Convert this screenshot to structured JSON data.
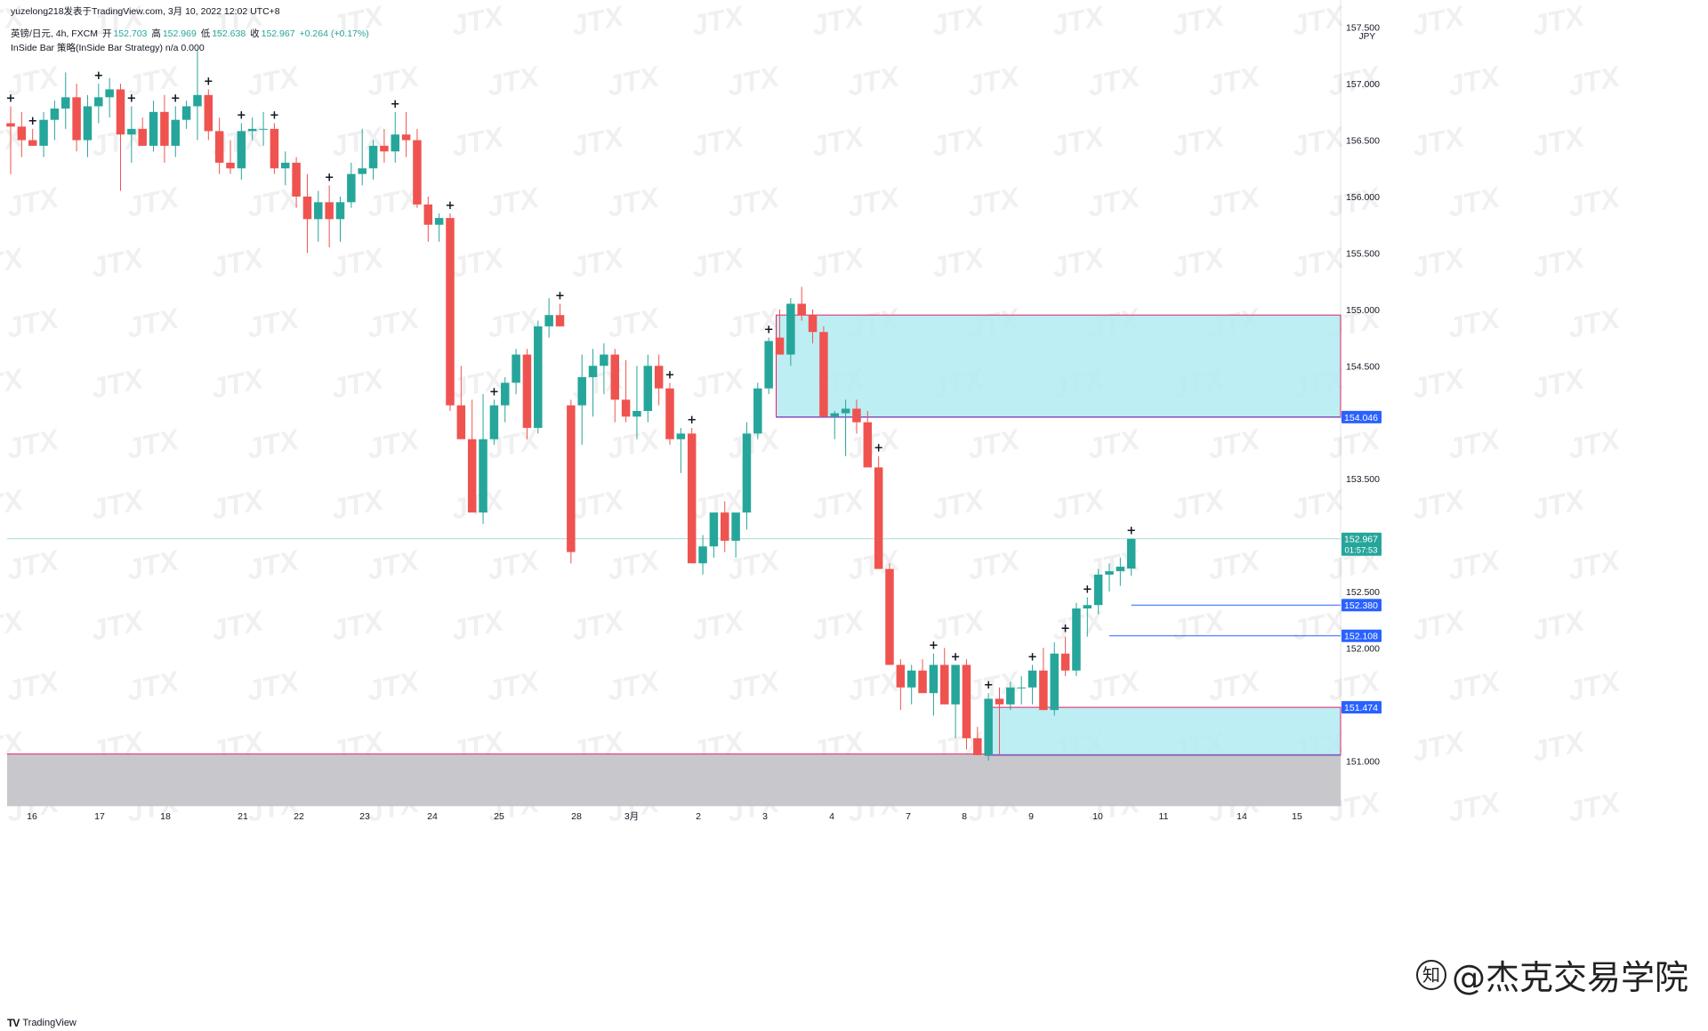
{
  "header": {
    "publisher": "yuzelong218发表于TradingView.com, 3月 10, 2022 12:02 UTC+8",
    "symbol": "英镑/日元, 4h, FXCM",
    "open_label": "开",
    "open": "152.703",
    "high_label": "高",
    "high": "152.969",
    "low_label": "低",
    "low": "152.638",
    "close_label": "收",
    "close": "152.967",
    "change": "+0.264 (+0.17%)",
    "indicator": "InSide Bar 策略(InSide Bar Strategy)  n/a  0.000"
  },
  "footer": {
    "logo": "TV",
    "brand": "TradingView"
  },
  "watermark": {
    "brand_text": "@杰克交易学院",
    "tile": "JTX"
  },
  "colors": {
    "up": "#26a69a",
    "down": "#ef5350",
    "zone_fill": "#b2ebf2",
    "zone_border": "#e91e63",
    "level_line": "#2962ff",
    "grey_zone": "#c8c8cc",
    "price_tag": "#2962ff",
    "last_price_tag": "#26a69a"
  },
  "chart_data": {
    "type": "candlestick",
    "title": "英镑/日元, 4h, FXCM",
    "currency": "JPY",
    "ylim": [
      150.6,
      157.6
    ],
    "y_ticks": [
      "157.500",
      "157.000",
      "156.500",
      "156.000",
      "155.500",
      "155.000",
      "154.500",
      "153.500",
      "152.500",
      "152.000",
      "151.000"
    ],
    "x_tick_labels": [
      "16",
      "17",
      "18",
      "21",
      "22",
      "23",
      "24",
      "25",
      "28",
      "3月",
      "2",
      "3",
      "4",
      "7",
      "8",
      "9",
      "10",
      "11",
      "14",
      "15"
    ],
    "candles_ohlc": [
      [
        156.65,
        156.8,
        156.2,
        156.62
      ],
      [
        156.62,
        156.75,
        156.35,
        156.5
      ],
      [
        156.5,
        156.6,
        156.45,
        156.45
      ],
      [
        156.45,
        156.75,
        156.35,
        156.68
      ],
      [
        156.68,
        156.85,
        156.5,
        156.78
      ],
      [
        156.78,
        157.1,
        156.6,
        156.88
      ],
      [
        156.88,
        157.0,
        156.4,
        156.5
      ],
      [
        156.5,
        156.9,
        156.35,
        156.8
      ],
      [
        156.8,
        157.0,
        156.65,
        156.88
      ],
      [
        156.88,
        157.05,
        156.7,
        156.95
      ],
      [
        156.95,
        157.0,
        156.05,
        156.55
      ],
      [
        156.55,
        156.8,
        156.3,
        156.6
      ],
      [
        156.6,
        156.7,
        156.45,
        156.45
      ],
      [
        156.45,
        156.85,
        156.4,
        156.75
      ],
      [
        156.75,
        156.9,
        156.3,
        156.45
      ],
      [
        156.45,
        156.8,
        156.35,
        156.68
      ],
      [
        156.68,
        156.85,
        156.6,
        156.8
      ],
      [
        156.8,
        157.3,
        156.5,
        156.9
      ],
      [
        156.9,
        156.95,
        156.5,
        156.58
      ],
      [
        156.58,
        156.7,
        156.2,
        156.3
      ],
      [
        156.3,
        156.5,
        156.2,
        156.25
      ],
      [
        156.25,
        156.65,
        156.15,
        156.58
      ],
      [
        156.58,
        156.7,
        156.5,
        156.6
      ],
      [
        156.6,
        156.75,
        156.45,
        156.6
      ],
      [
        156.6,
        156.65,
        156.2,
        156.25
      ],
      [
        156.25,
        156.4,
        156.1,
        156.3
      ],
      [
        156.3,
        156.35,
        155.9,
        156.0
      ],
      [
        156.0,
        156.2,
        155.5,
        155.8
      ],
      [
        155.8,
        156.05,
        155.6,
        155.95
      ],
      [
        155.95,
        156.1,
        155.55,
        155.8
      ],
      [
        155.8,
        156.0,
        155.6,
        155.95
      ],
      [
        155.95,
        156.3,
        155.9,
        156.2
      ],
      [
        156.2,
        156.6,
        156.1,
        156.25
      ],
      [
        156.25,
        156.5,
        156.15,
        156.45
      ],
      [
        156.45,
        156.6,
        156.3,
        156.4
      ],
      [
        156.4,
        156.75,
        156.3,
        156.55
      ],
      [
        156.55,
        156.75,
        156.35,
        156.5
      ],
      [
        156.5,
        156.6,
        155.9,
        155.93
      ],
      [
        155.93,
        156.0,
        155.6,
        155.75
      ],
      [
        155.75,
        155.85,
        155.6,
        155.81
      ],
      [
        155.81,
        155.85,
        154.1,
        154.15
      ],
      [
        154.15,
        154.5,
        153.9,
        153.85
      ],
      [
        153.85,
        154.2,
        153.3,
        153.2
      ],
      [
        153.2,
        154.25,
        153.1,
        153.85
      ],
      [
        153.85,
        154.2,
        153.8,
        154.15
      ],
      [
        154.15,
        154.4,
        154.0,
        154.35
      ],
      [
        154.35,
        154.65,
        154.25,
        154.6
      ],
      [
        154.6,
        154.65,
        153.85,
        153.95
      ],
      [
        153.95,
        154.9,
        153.9,
        154.85
      ],
      [
        154.85,
        155.1,
        154.75,
        154.95
      ],
      [
        154.95,
        155.05,
        154.85,
        154.85
      ],
      [
        154.15,
        154.2,
        152.75,
        152.85
      ],
      [
        154.15,
        154.6,
        153.8,
        154.4
      ],
      [
        154.4,
        154.65,
        154.05,
        154.5
      ],
      [
        154.5,
        154.7,
        154.25,
        154.6
      ],
      [
        154.6,
        154.65,
        154.0,
        154.2
      ],
      [
        154.2,
        154.55,
        154.0,
        154.05
      ],
      [
        154.05,
        154.5,
        153.85,
        154.1
      ],
      [
        154.1,
        154.6,
        154.0,
        154.5
      ],
      [
        154.5,
        154.6,
        154.15,
        154.3
      ],
      [
        154.3,
        154.35,
        153.8,
        153.85
      ],
      [
        153.85,
        153.95,
        153.55,
        153.9
      ],
      [
        153.9,
        153.95,
        152.8,
        152.75
      ],
      [
        152.75,
        153.0,
        152.65,
        152.9
      ],
      [
        152.9,
        153.2,
        152.8,
        153.2
      ],
      [
        153.2,
        153.3,
        152.85,
        152.95
      ],
      [
        152.95,
        153.1,
        152.8,
        153.2
      ],
      [
        153.2,
        154.0,
        153.05,
        153.9
      ],
      [
        153.9,
        154.35,
        153.85,
        154.3
      ],
      [
        154.3,
        154.75,
        154.25,
        154.72
      ],
      [
        154.75,
        155.0,
        154.6,
        154.6
      ],
      [
        154.6,
        155.1,
        154.5,
        155.05
      ],
      [
        155.05,
        155.2,
        154.9,
        154.95
      ],
      [
        154.95,
        155.0,
        154.7,
        154.8
      ],
      [
        154.8,
        154.85,
        154.1,
        154.05
      ],
      [
        154.05,
        154.1,
        153.85,
        154.08
      ],
      [
        154.08,
        154.2,
        153.7,
        154.12
      ],
      [
        154.12,
        154.2,
        153.9,
        154.0
      ],
      [
        154.0,
        154.1,
        153.6,
        153.6
      ],
      [
        153.6,
        153.7,
        152.7,
        152.7
      ],
      [
        152.7,
        152.75,
        151.85,
        151.85
      ],
      [
        151.85,
        151.9,
        151.45,
        151.65
      ],
      [
        151.65,
        151.85,
        151.5,
        151.8
      ],
      [
        151.8,
        151.9,
        151.6,
        151.6
      ],
      [
        151.6,
        151.95,
        151.4,
        151.85
      ],
      [
        151.85,
        152.0,
        151.5,
        151.5
      ],
      [
        151.5,
        151.85,
        151.2,
        151.85
      ],
      [
        151.85,
        151.9,
        151.1,
        151.2
      ],
      [
        151.2,
        151.3,
        151.05,
        151.05
      ],
      [
        151.05,
        151.6,
        151.0,
        151.55
      ],
      [
        151.55,
        151.65,
        151.05,
        151.5
      ],
      [
        151.5,
        151.7,
        151.45,
        151.65
      ],
      [
        151.65,
        151.75,
        151.5,
        151.65
      ],
      [
        151.65,
        151.85,
        151.5,
        151.8
      ],
      [
        151.8,
        152.0,
        151.45,
        151.45
      ],
      [
        151.45,
        152.05,
        151.4,
        151.95
      ],
      [
        151.95,
        152.1,
        151.75,
        151.8
      ],
      [
        151.8,
        152.4,
        151.75,
        152.35
      ],
      [
        152.35,
        152.45,
        152.1,
        152.38
      ],
      [
        152.38,
        152.7,
        152.3,
        152.65
      ],
      [
        152.65,
        152.75,
        152.5,
        152.68
      ],
      [
        152.68,
        152.8,
        152.55,
        152.72
      ],
      [
        152.703,
        152.969,
        152.638,
        152.967
      ]
    ],
    "inside_bar_markers": [
      0,
      2,
      8,
      11,
      15,
      18,
      21,
      24,
      29,
      35,
      40,
      44,
      50,
      60,
      62,
      69,
      79,
      84,
      86,
      89,
      93,
      96,
      98,
      102
    ],
    "zones": [
      {
        "name": "upper-supply-zone",
        "top": 154.95,
        "bottom": 154.046,
        "start_index": 70
      },
      {
        "name": "lower-demand-zone",
        "top": 151.474,
        "bottom": 151.05,
        "start_index": 89
      }
    ],
    "grey_zone": {
      "top": 151.06,
      "bottom": 150.6
    },
    "levels": [
      {
        "value": 152.38,
        "label": "152.380",
        "start_index": 102
      },
      {
        "value": 152.108,
        "label": "152.108",
        "start_index": 100
      }
    ],
    "price_tags": [
      {
        "label": "154.046",
        "value": 154.046
      },
      {
        "label": "151.474",
        "value": 151.474
      }
    ],
    "last_price": {
      "value": 152.967,
      "label": "152.967",
      "countdown": "01:57:53"
    }
  }
}
